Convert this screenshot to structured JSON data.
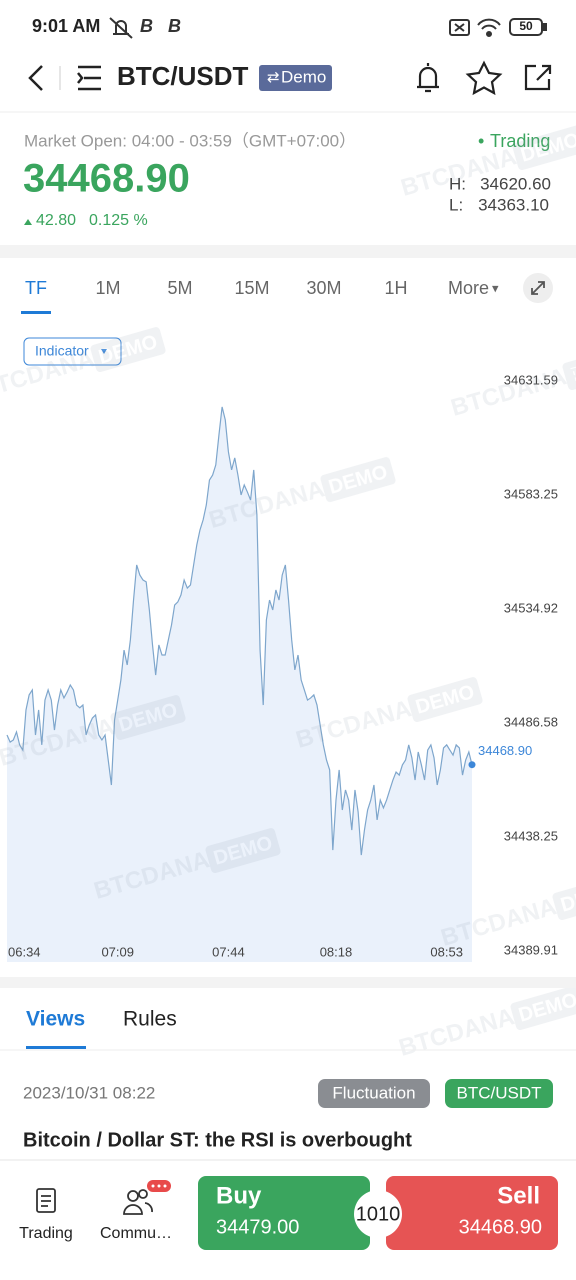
{
  "status_bar": {
    "time": "9:01 AM",
    "battery": "50"
  },
  "header": {
    "symbol": "BTC/USDT",
    "badge": "Demo"
  },
  "market": {
    "hours": "Market Open: 04:00 - 03:59（GMT+07:00）",
    "status": "Trading",
    "price": "34468.90",
    "change": "42.80",
    "change_pct": "0.125 %",
    "high_label": "H:",
    "high": "34620.60",
    "low_label": "L:",
    "low": "34363.10"
  },
  "timeframes": [
    "TF",
    "1M",
    "5M",
    "15M",
    "30M",
    "1H",
    "More"
  ],
  "indicator": "Indicator",
  "watermark": {
    "brand": "BTCDANA",
    "tag": "DEMO"
  },
  "chart_data": {
    "type": "line",
    "area": true,
    "color": "#7ea6cc",
    "fill": "#eaf1fb",
    "marker_color": "#3d87d8",
    "categories": [
      "06:34",
      null,
      null,
      null,
      null,
      null,
      null,
      null,
      null,
      null,
      null,
      null,
      null,
      null,
      null,
      null,
      null,
      null,
      null,
      null,
      null,
      null,
      null,
      null,
      null,
      null,
      null,
      null,
      null,
      null,
      null,
      null,
      null,
      null,
      null,
      "07:09",
      null,
      null,
      null,
      null,
      null,
      null,
      null,
      null,
      null,
      null,
      null,
      null,
      null,
      null,
      null,
      null,
      null,
      null,
      null,
      null,
      null,
      null,
      null,
      null,
      null,
      null,
      null,
      null,
      null,
      null,
      null,
      null,
      null,
      null,
      "07:44",
      null,
      null,
      null,
      null,
      null,
      null,
      null,
      null,
      null,
      null,
      null,
      null,
      null,
      null,
      null,
      null,
      null,
      null,
      null,
      null,
      null,
      null,
      null,
      null,
      null,
      null,
      null,
      null,
      null,
      null,
      null,
      null,
      null,
      "08:18",
      null,
      null,
      null,
      null,
      null,
      null,
      null,
      null,
      null,
      null,
      null,
      null,
      null,
      null,
      null,
      null,
      null,
      null,
      null,
      null,
      null,
      null,
      null,
      null,
      null,
      null,
      null,
      null,
      null,
      null,
      null,
      null,
      null,
      null,
      "08:53",
      null,
      null,
      null,
      null,
      null,
      null,
      null,
      null
    ],
    "values": [
      34481.5,
      34478.5,
      34479.4,
      34482.8,
      34477.3,
      34475.1,
      34492.1,
      34498.5,
      34500.6,
      34481.5,
      34492.1,
      34477.3,
      34496.3,
      34500.6,
      34496.3,
      34483.6,
      34494.2,
      34500.6,
      34497.2,
      34499.7,
      34502.7,
      34500.6,
      34494.2,
      34493.0,
      34494.2,
      34481.5,
      34485.7,
      34488.7,
      34490.0,
      34481.5,
      34479.4,
      34481.5,
      34470.9,
      34460.3,
      34487.9,
      34496.3,
      34504.8,
      34517.5,
      34511.2,
      34521.8,
      34538.7,
      34553.6,
      34549.3,
      34547.2,
      34546.4,
      34534.5,
      34519.7,
      34506.9,
      34519.7,
      34515.4,
      34515.4,
      34521.8,
      34528.1,
      34536.6,
      34537.9,
      34540.9,
      34547.2,
      34543.8,
      34545.1,
      34553.6,
      34562.1,
      34568.4,
      34572.7,
      34579.0,
      34589.6,
      34591.7,
      34596.0,
      34608.7,
      34620.6,
      34615.1,
      34601.5,
      34593.9,
      34599.0,
      34591.7,
      34583.3,
      34587.5,
      34584.5,
      34581.1,
      34593.9,
      34574.8,
      34517.5,
      34494.2,
      34530.3,
      34538.7,
      34534.5,
      34543.0,
      34538.7,
      34549.3,
      34553.6,
      34538.7,
      34521.8,
      34509.1,
      34515.4,
      34504.8,
      34500.6,
      34496.3,
      34497.2,
      34498.5,
      34494.2,
      34485.7,
      34477.3,
      34470.9,
      34466.7,
      34432.7,
      34453.9,
      34466.7,
      34449.7,
      34458.2,
      34453.9,
      34441.2,
      34458.2,
      34448.9,
      34430.6,
      34441.2,
      34449.7,
      34453.9,
      34460.3,
      34445.5,
      34453.9,
      34450.6,
      34453.9,
      34458.2,
      34462.4,
      34465.8,
      34464.5,
      34468.8,
      34470.9,
      34477.3,
      34471.8,
      34462.4,
      34474.3,
      34468.8,
      34462.4,
      34475.1,
      34477.3,
      34471.8,
      34460.3,
      34466.7,
      34476.0,
      34477.3,
      34475.1,
      34473.0,
      34477.3,
      34476.0,
      34464.5,
      34470.9,
      34474.3,
      34468.9
    ],
    "last_value_label": "34468.90",
    "ylim": [
      34385.25,
      34636.25
    ],
    "yticks": [
      34631.59,
      34583.25,
      34534.92,
      34486.58,
      34438.25,
      34389.91
    ],
    "grid": false
  },
  "tabs": [
    "Views",
    "Rules"
  ],
  "article": {
    "date": "2023/10/31 08:22",
    "tags": [
      "Fluctuation",
      "BTC/USDT"
    ],
    "title": "Bitcoin / Dollar ST: the RSI is overbought"
  },
  "bottom_nav": {
    "items": [
      "Trading",
      "Commu…"
    ],
    "buy_label": "Buy",
    "buy_price": "34479.00",
    "sell_label": "Sell",
    "sell_price": "34468.90",
    "spread": "1010"
  }
}
